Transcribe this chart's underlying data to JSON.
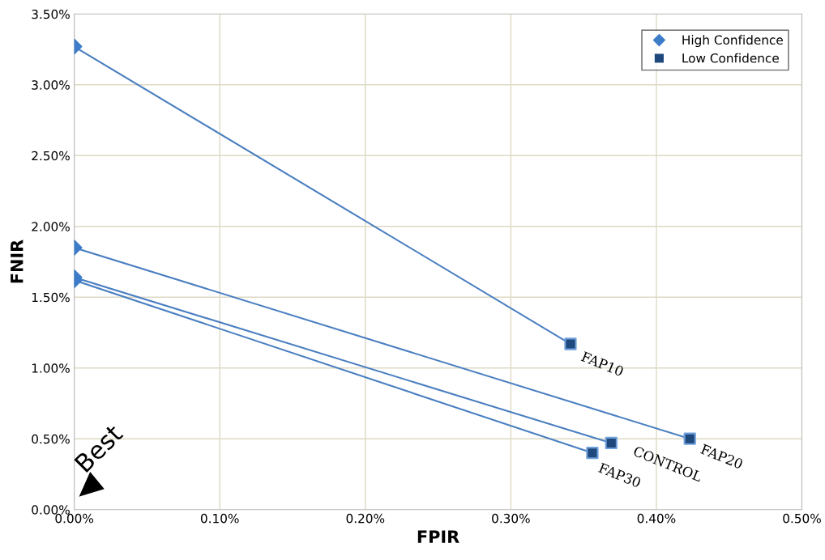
{
  "chart_data": {
    "type": "scatter",
    "xlabel": "FPIR",
    "ylabel": "FNIR",
    "xlim": [
      0,
      0.5
    ],
    "ylim": [
      0,
      3.5
    ],
    "xticks": [
      {
        "value": 0,
        "label": "0.00%"
      },
      {
        "value": 0.1,
        "label": "0.10%"
      },
      {
        "value": 0.2,
        "label": "0.20%"
      },
      {
        "value": 0.3,
        "label": "0.30%"
      },
      {
        "value": 0.4,
        "label": "0.40%"
      },
      {
        "value": 0.5,
        "label": "0.50%"
      }
    ],
    "yticks": [
      {
        "value": 0,
        "label": "0.00%"
      },
      {
        "value": 0.5,
        "label": "0.50%"
      },
      {
        "value": 1,
        "label": "1.00%"
      },
      {
        "value": 1.5,
        "label": "1.50%"
      },
      {
        "value": 2,
        "label": "2.00%"
      },
      {
        "value": 2.5,
        "label": "2.50%"
      },
      {
        "value": 3,
        "label": "3.00%"
      },
      {
        "value": 3.5,
        "label": "3.50%"
      }
    ],
    "grid": true,
    "legend": "top right",
    "series": [
      {
        "type": "line",
        "color": "#4a7fc1",
        "marker": "none",
        "x": [
          0,
          0.341
        ],
        "values": [
          3.27,
          1.17
        ]
      },
      {
        "type": "line",
        "color": "#4a7fc1",
        "marker": "none",
        "x": [
          0,
          0.423
        ],
        "values": [
          1.85,
          0.5
        ]
      },
      {
        "type": "line",
        "color": "#4a7fc1",
        "marker": "none",
        "x": [
          0,
          0.369
        ],
        "values": [
          1.64,
          0.47
        ]
      },
      {
        "type": "line",
        "color": "#4a7fc1",
        "marker": "none",
        "x": [
          0,
          0.356
        ],
        "values": [
          1.62,
          0.4
        ]
      },
      {
        "name": "High Confidence",
        "color": "#3d7cc9",
        "marker": "diamond",
        "x": [
          0,
          0,
          0,
          0
        ],
        "values": [
          3.27,
          1.85,
          1.64,
          1.62
        ]
      },
      {
        "name": "Low Confidence",
        "color": "#1f487c",
        "marker": "square",
        "x": [
          0.341,
          0.423,
          0.369,
          0.356
        ],
        "values": [
          1.17,
          0.5,
          0.47,
          0.4
        ]
      }
    ],
    "annotations": [
      {
        "text": "FAP10",
        "x": 0.341,
        "y": 1.17
      },
      {
        "text": "FAP20",
        "x": 0.423,
        "y": 0.5
      },
      {
        "text": "CONTROL",
        "x": 0.369,
        "y": 0.47
      },
      {
        "text": "FAP30",
        "x": 0.356,
        "y": 0.4
      },
      "Best"
    ]
  }
}
